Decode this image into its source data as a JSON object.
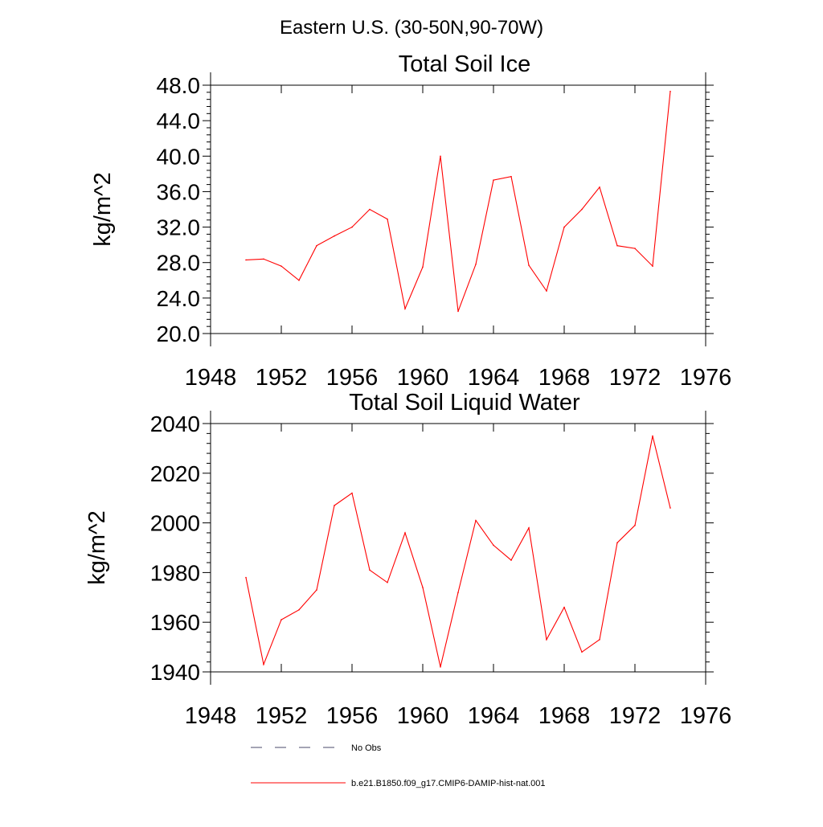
{
  "suptitle": "Eastern U.S. (30-50N,90-70W)",
  "chart_data": [
    {
      "type": "line",
      "title": "Total Soil Ice",
      "xlabel": "",
      "ylabel": "kg/m^2",
      "xlim": [
        1948,
        1976
      ],
      "ylim": [
        20,
        48
      ],
      "x_ticks": [
        1948,
        1952,
        1956,
        1960,
        1964,
        1968,
        1972,
        1976
      ],
      "x_tick_labels": [
        "1948",
        "1952",
        "1956",
        "1960",
        "1964",
        "1968",
        "1972",
        "1976"
      ],
      "y_ticks": [
        20,
        24,
        28,
        32,
        36,
        40,
        44,
        48
      ],
      "y_tick_labels": [
        "20.0",
        "24.0",
        "28.0",
        "32.0",
        "36.0",
        "40.0",
        "44.0",
        "48.0"
      ],
      "grid": false,
      "series": [
        {
          "name": "b.e21.B1850.f09_g17.CMIP6-DAMIP-hist-nat.001",
          "color": "#ff0000",
          "x": [
            1950,
            1951,
            1952,
            1953,
            1954,
            1955,
            1956,
            1957,
            1958,
            1959,
            1960,
            1961,
            1962,
            1963,
            1964,
            1965,
            1966,
            1967,
            1968,
            1969,
            1970,
            1971,
            1972,
            1973,
            1974
          ],
          "y": [
            28.3,
            28.4,
            27.6,
            26.0,
            29.9,
            31.0,
            32.0,
            34.0,
            32.9,
            22.8,
            27.5,
            40.0,
            22.5,
            27.8,
            37.3,
            37.7,
            27.7,
            24.8,
            32.0,
            34.0,
            36.5,
            29.9,
            29.6,
            27.6,
            47.3
          ]
        }
      ]
    },
    {
      "type": "line",
      "title": "Total Soil Liquid Water",
      "xlabel": "",
      "ylabel": "kg/m^2",
      "xlim": [
        1948,
        1976
      ],
      "ylim": [
        1940,
        2040
      ],
      "x_ticks": [
        1948,
        1952,
        1956,
        1960,
        1964,
        1968,
        1972,
        1976
      ],
      "x_tick_labels": [
        "1948",
        "1952",
        "1956",
        "1960",
        "1964",
        "1968",
        "1972",
        "1976"
      ],
      "y_ticks": [
        1940,
        1960,
        1980,
        2000,
        2020,
        2040
      ],
      "y_tick_labels": [
        "1940",
        "1960",
        "1980",
        "2000",
        "2020",
        "2040"
      ],
      "grid": false,
      "series": [
        {
          "name": "b.e21.B1850.f09_g17.CMIP6-DAMIP-hist-nat.001",
          "color": "#ff0000",
          "x": [
            1950,
            1951,
            1952,
            1953,
            1954,
            1955,
            1956,
            1957,
            1958,
            1959,
            1960,
            1961,
            1962,
            1963,
            1964,
            1965,
            1966,
            1967,
            1968,
            1969,
            1970,
            1971,
            1972,
            1973,
            1974
          ],
          "y": [
            1978,
            1943,
            1961,
            1965,
            1973,
            2007,
            2012,
            1981,
            1976,
            1996,
            1974,
            1942,
            1972,
            2001,
            1991,
            1985,
            1998,
            1953,
            1966,
            1948,
            1953,
            1992,
            1999,
            2035,
            2006
          ]
        }
      ]
    }
  ],
  "legend": {
    "placement": "bottom",
    "items": [
      {
        "label": "No Obs",
        "color": "#4a4a6a",
        "style": "dashed"
      },
      {
        "label": "b.e21.B1850.f09_g17.CMIP6-DAMIP-hist-nat.001",
        "color": "#ff0000",
        "style": "solid"
      }
    ]
  }
}
